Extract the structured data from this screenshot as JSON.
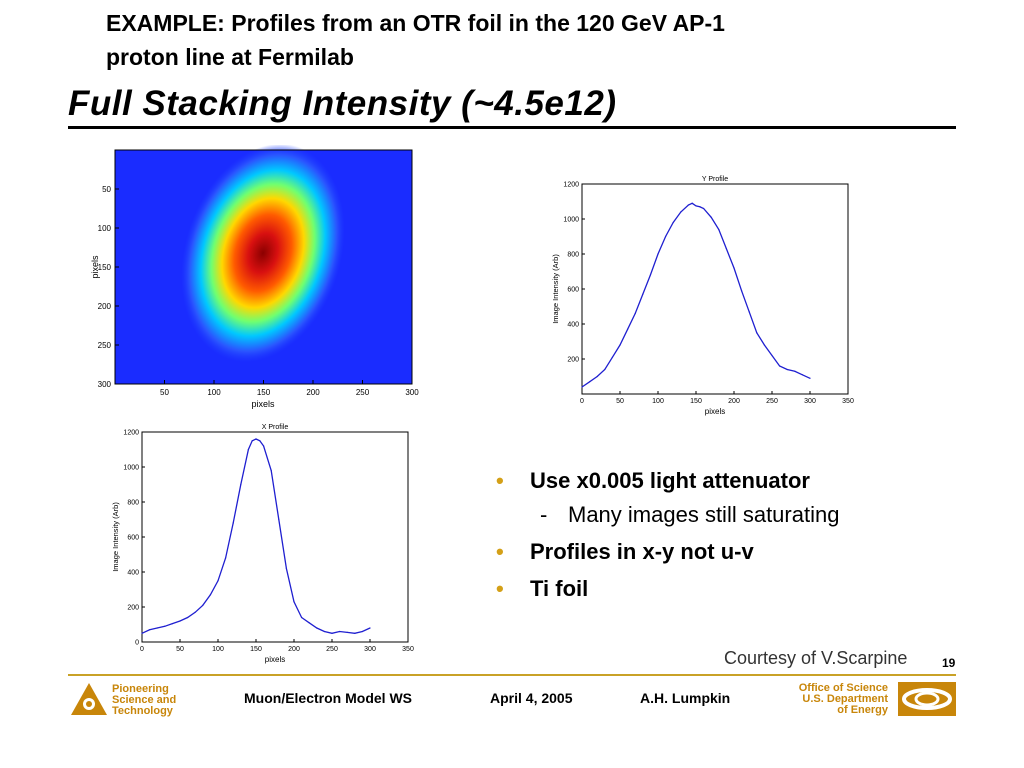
{
  "slide": {
    "title_line1": "EXAMPLE:   Profiles from an OTR foil in the 120 GeV AP-1",
    "title_line2": "proton line at Fermilab",
    "subtitle": "Full Stacking Intensity (~4.5e12)",
    "courtesy": "Courtesy of V.Scarpine",
    "page_number": "19"
  },
  "image_plot": {
    "xlabel": "pixels",
    "ylabel": "pixels",
    "x_ticks": [
      "50",
      "100",
      "150",
      "200",
      "250",
      "300"
    ],
    "y_ticks": [
      "50",
      "100",
      "150",
      "200",
      "250",
      "300"
    ],
    "colormap": "jet"
  },
  "chart_data": [
    {
      "type": "line",
      "title": "Y Profile",
      "xlabel": "pixels",
      "ylabel": "Image Intensity (Arb)",
      "xlim": [
        0,
        350
      ],
      "ylim": [
        0,
        1200
      ],
      "x_ticks": [
        0,
        50,
        100,
        150,
        200,
        250,
        300,
        350
      ],
      "y_ticks": [
        200,
        400,
        600,
        800,
        1000,
        1200
      ],
      "color": "#1f1fd0",
      "x": [
        0,
        10,
        20,
        30,
        40,
        50,
        60,
        70,
        80,
        90,
        100,
        110,
        120,
        130,
        140,
        145,
        150,
        155,
        160,
        170,
        180,
        190,
        200,
        210,
        220,
        230,
        240,
        250,
        260,
        270,
        280,
        290,
        300
      ],
      "values": [
        40,
        70,
        100,
        140,
        210,
        280,
        370,
        460,
        570,
        680,
        800,
        900,
        980,
        1040,
        1080,
        1090,
        1075,
        1070,
        1060,
        1010,
        940,
        830,
        720,
        590,
        470,
        350,
        280,
        220,
        160,
        140,
        130,
        110,
        90
      ]
    },
    {
      "type": "line",
      "title": "X Profile",
      "xlabel": "pixels",
      "ylabel": "Image Intensity (Arb)",
      "xlim": [
        0,
        350
      ],
      "ylim": [
        0,
        1200
      ],
      "x_ticks": [
        0,
        50,
        100,
        150,
        200,
        250,
        300,
        350
      ],
      "y_ticks": [
        0,
        200,
        400,
        600,
        800,
        1000,
        1200
      ],
      "color": "#1f1fd0",
      "x": [
        0,
        10,
        20,
        30,
        40,
        50,
        60,
        70,
        80,
        90,
        100,
        110,
        120,
        130,
        140,
        145,
        150,
        155,
        160,
        170,
        180,
        190,
        200,
        210,
        220,
        230,
        240,
        250,
        260,
        270,
        280,
        290,
        300
      ],
      "values": [
        50,
        70,
        80,
        90,
        105,
        120,
        140,
        170,
        210,
        270,
        350,
        480,
        680,
        900,
        1100,
        1150,
        1160,
        1150,
        1120,
        980,
        700,
        420,
        230,
        140,
        110,
        80,
        60,
        50,
        60,
        55,
        50,
        60,
        80
      ]
    }
  ],
  "bullets": [
    {
      "text": "Use x0.005 light attenuator",
      "sub": "Many images still saturating"
    },
    {
      "text": "Profiles in x-y not u-v"
    },
    {
      "text": "Ti foil"
    }
  ],
  "footer": {
    "left_logo_lines": [
      "Pioneering",
      "Science and",
      "Technology"
    ],
    "workshop": "Muon/Electron Model WS",
    "date": "April 4, 2005",
    "author": "A.H. Lumpkin",
    "doe_lines": [
      "Office of Science",
      "U.S. Department",
      "of Energy"
    ]
  },
  "colors": {
    "accent": "#c9a227",
    "bullet": "#d4a017",
    "line": "#1f1fd0"
  }
}
